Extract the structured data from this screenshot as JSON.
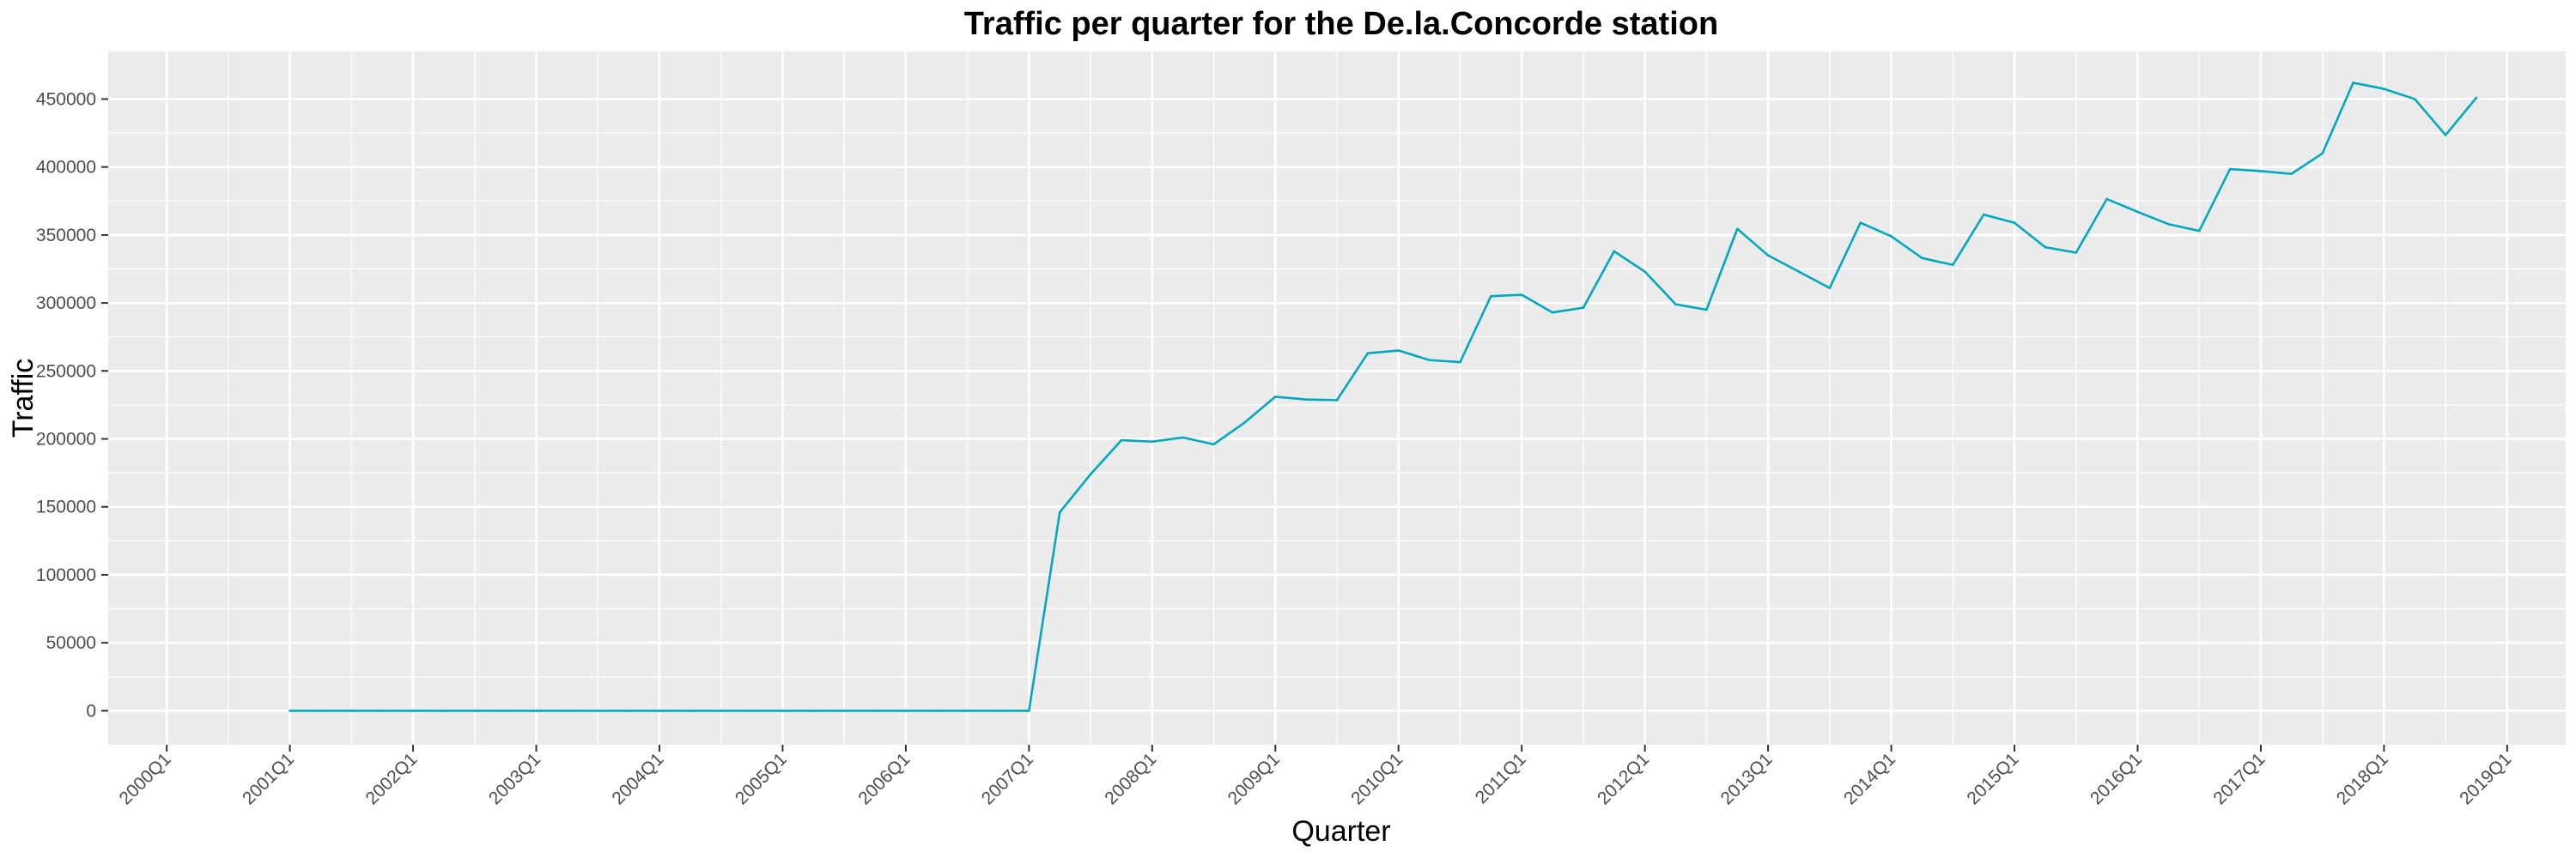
{
  "chart_data": {
    "type": "line",
    "title": "Traffic per quarter for the De.la.Concorde station",
    "xlabel": "Quarter",
    "ylabel": "Traffic",
    "ylim": [
      -25000,
      485000
    ],
    "yticks": [
      0,
      50000,
      100000,
      150000,
      200000,
      250000,
      300000,
      350000,
      400000,
      450000
    ],
    "ytick_labels": [
      "0",
      "50000",
      "100000",
      "150000",
      "200000",
      "250000",
      "300000",
      "350000",
      "400000",
      "450000"
    ],
    "xticks": [
      "2000Q1",
      "2001Q1",
      "2002Q1",
      "2003Q1",
      "2004Q1",
      "2005Q1",
      "2006Q1",
      "2007Q1",
      "2008Q1",
      "2009Q1",
      "2010Q1",
      "2011Q1",
      "2012Q1",
      "2013Q1",
      "2014Q1",
      "2015Q1",
      "2016Q1",
      "2017Q1",
      "2018Q1",
      "2019Q1"
    ],
    "grid": true,
    "colors": {
      "line": "#00A9BF",
      "panel": "#EBEBEB",
      "grid": "#FFFFFF",
      "tick_text": "#4D4D4D"
    },
    "series": [
      {
        "x": [
          "2001Q1",
          "2001Q2",
          "2001Q3",
          "2001Q4",
          "2002Q1",
          "2002Q2",
          "2002Q3",
          "2002Q4",
          "2003Q1",
          "2003Q2",
          "2003Q3",
          "2003Q4",
          "2004Q1",
          "2004Q2",
          "2004Q3",
          "2004Q4",
          "2005Q1",
          "2005Q2",
          "2005Q3",
          "2005Q4",
          "2006Q1",
          "2006Q2",
          "2006Q3",
          "2006Q4",
          "2007Q1",
          "2007Q2",
          "2007Q3",
          "2007Q4",
          "2008Q1",
          "2008Q2",
          "2008Q3",
          "2008Q4",
          "2009Q1",
          "2009Q2",
          "2009Q3",
          "2009Q4",
          "2010Q1",
          "2010Q2",
          "2010Q3",
          "2010Q4",
          "2011Q1",
          "2011Q2",
          "2011Q3",
          "2011Q4",
          "2012Q1",
          "2012Q2",
          "2012Q3",
          "2012Q4",
          "2013Q1",
          "2013Q2",
          "2013Q3",
          "2013Q4",
          "2014Q1",
          "2014Q2",
          "2014Q3",
          "2014Q4",
          "2015Q1",
          "2015Q2",
          "2015Q3",
          "2015Q4",
          "2016Q1",
          "2016Q2",
          "2016Q3",
          "2016Q4",
          "2017Q1",
          "2017Q2",
          "2017Q3",
          "2017Q4",
          "2018Q1",
          "2018Q2",
          "2018Q3",
          "2018Q4"
        ],
        "values": [
          0,
          0,
          0,
          0,
          0,
          0,
          0,
          0,
          0,
          0,
          0,
          0,
          0,
          0,
          0,
          0,
          0,
          0,
          0,
          0,
          0,
          0,
          0,
          0,
          0,
          146000,
          174000,
          199000,
          198000,
          201000,
          196000,
          212000,
          231000,
          229000,
          228500,
          263000,
          265000,
          258000,
          256500,
          305000,
          306000,
          293000,
          296500,
          338000,
          323000,
          299000,
          295000,
          354500,
          335000,
          323000,
          311000,
          359000,
          349000,
          333000,
          328000,
          365000,
          359000,
          341000,
          337000,
          376500,
          367000,
          358000,
          353000,
          398500,
          397000,
          395000,
          410000,
          462000,
          457500,
          450000,
          423500,
          451000
        ]
      }
    ]
  }
}
